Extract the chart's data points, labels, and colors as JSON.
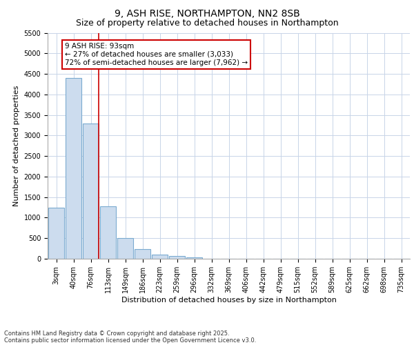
{
  "title_line1": "9, ASH RISE, NORTHAMPTON, NN2 8SB",
  "title_line2": "Size of property relative to detached houses in Northampton",
  "xlabel": "Distribution of detached houses by size in Northampton",
  "ylabel": "Number of detached properties",
  "categories": [
    "3sqm",
    "40sqm",
    "76sqm",
    "113sqm",
    "149sqm",
    "186sqm",
    "223sqm",
    "259sqm",
    "296sqm",
    "332sqm",
    "369sqm",
    "406sqm",
    "442sqm",
    "479sqm",
    "515sqm",
    "552sqm",
    "589sqm",
    "625sqm",
    "662sqm",
    "698sqm",
    "735sqm"
  ],
  "values": [
    1250,
    4400,
    3300,
    1280,
    500,
    240,
    100,
    70,
    30,
    0,
    0,
    0,
    0,
    0,
    0,
    0,
    0,
    0,
    0,
    0,
    0
  ],
  "bar_color": "#ccdcee",
  "bar_edgecolor": "#7aaad0",
  "red_line_x": 2.45,
  "annotation_text": "9 ASH RISE: 93sqm\n← 27% of detached houses are smaller (3,033)\n72% of semi-detached houses are larger (7,962) →",
  "annotation_box_facecolor": "#ffffff",
  "annotation_box_edgecolor": "#cc0000",
  "ylim": [
    0,
    5500
  ],
  "yticks": [
    0,
    500,
    1000,
    1500,
    2000,
    2500,
    3000,
    3500,
    4000,
    4500,
    5000,
    5500
  ],
  "footer_line1": "Contains HM Land Registry data © Crown copyright and database right 2025.",
  "footer_line2": "Contains public sector information licensed under the Open Government Licence v3.0.",
  "background_color": "#ffffff",
  "grid_color": "#c8d4e8",
  "title1_fontsize": 10,
  "title2_fontsize": 9,
  "xlabel_fontsize": 8,
  "ylabel_fontsize": 8,
  "tick_fontsize": 7,
  "annot_fontsize": 7.5,
  "footer_fontsize": 6
}
